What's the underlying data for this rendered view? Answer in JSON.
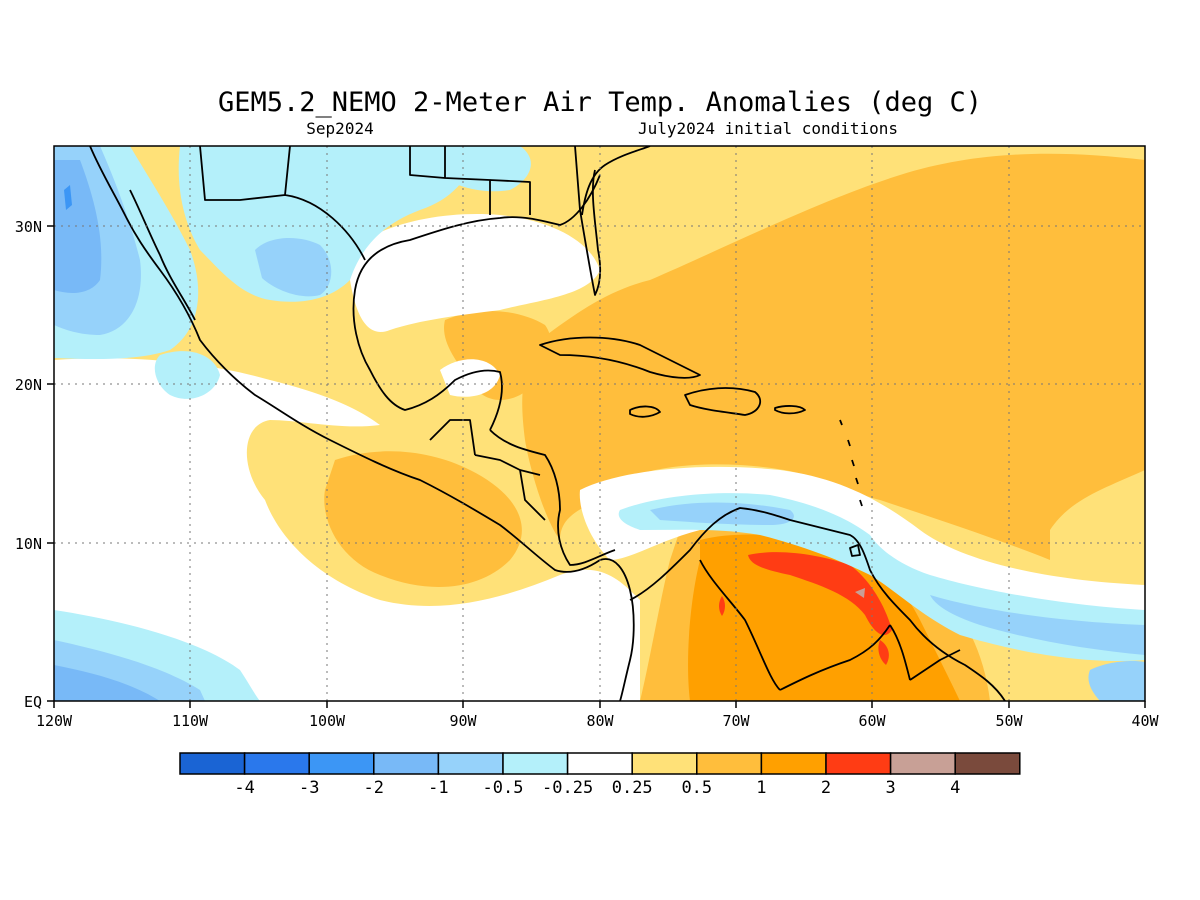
{
  "title": "GEM5.2_NEMO 2-Meter Air Temp. Anomalies (deg C)",
  "valid_month": "Sep2024",
  "init_conditions": "July2024 initial conditions",
  "map": {
    "lon_range": [
      "120W",
      "40W"
    ],
    "lat_range": [
      "EQ",
      "35N"
    ],
    "grid": "dotted",
    "lon_ticks": [
      "120W",
      "110W",
      "100W",
      "90W",
      "80W",
      "70W",
      "60W",
      "50W",
      "40W"
    ],
    "lat_ticks": [
      "EQ",
      "10N",
      "20N",
      "30N"
    ]
  },
  "colorbar": {
    "labels": [
      "-4",
      "-3",
      "-2",
      "-1",
      "-0.5",
      "-0.25",
      "0.25",
      "0.5",
      "1",
      "2",
      "3",
      "4"
    ],
    "colors": [
      "#1a64d4",
      "#2a78ec",
      "#3c96f5",
      "#78b9f7",
      "#96d2fa",
      "#b4f0fa",
      "#ffffff",
      "#ffe178",
      "#ffbe3c",
      "#ffa000",
      "#ff3c14",
      "#c8a096",
      "#7a4a3c"
    ]
  },
  "chart_data": {
    "type": "heatmap",
    "title": "GEM5.2_NEMO 2-Meter Air Temp. Anomalies (deg C)",
    "xlabel": "",
    "ylabel": "",
    "xlim": [
      -120,
      -40
    ],
    "ylim": [
      0,
      35
    ],
    "units": "deg C",
    "levels": [
      -4,
      -3,
      -2,
      -1,
      -0.5,
      -0.25,
      0.25,
      0.5,
      1,
      2,
      3,
      4
    ]
  }
}
